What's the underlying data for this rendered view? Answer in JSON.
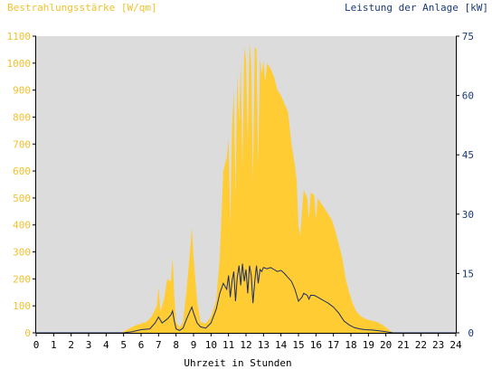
{
  "chart_data": {
    "type": "area",
    "title_left": "Bestrahlungsstärke [W/qm]",
    "title_right": "Leistung der Anlage [kW]",
    "xlabel": "Uhrzeit in Stunden",
    "xlim": [
      0,
      24
    ],
    "x_ticks": [
      "0",
      "1",
      "2",
      "3",
      "4",
      "5",
      "6",
      "7",
      "8",
      "9",
      "10",
      "11",
      "12",
      "13",
      "14",
      "15",
      "16",
      "17",
      "18",
      "19",
      "20",
      "21",
      "22",
      "23",
      "24"
    ],
    "y_left": {
      "range": [
        0,
        1100
      ],
      "ticks": [
        "0",
        "100",
        "200",
        "300",
        "400",
        "500",
        "600",
        "700",
        "800",
        "900",
        "1000",
        "1100"
      ]
    },
    "y_right": {
      "range": [
        0,
        75
      ],
      "ticks": [
        "0",
        "15",
        "30",
        "45",
        "60",
        "75"
      ]
    },
    "grid": false,
    "colors": {
      "background": "#ffffff",
      "plot_area": "#dcdcdc",
      "irradiance": "#ffcc33",
      "power": "#1a2e66",
      "left_axis_text": "#f2c02e",
      "right_axis_text": "#1a3a7a",
      "x_axis_text": "#000000"
    },
    "series": [
      {
        "name": "Bestrahlungsstärke",
        "axis": "left",
        "style": "area",
        "points": [
          [
            0,
            0
          ],
          [
            4.8,
            0
          ],
          [
            5,
            5
          ],
          [
            5.3,
            15
          ],
          [
            5.6,
            25
          ],
          [
            6,
            35
          ],
          [
            6.3,
            40
          ],
          [
            6.6,
            60
          ],
          [
            6.9,
            100
          ],
          [
            7.0,
            170
          ],
          [
            7.1,
            80
          ],
          [
            7.3,
            120
          ],
          [
            7.5,
            200
          ],
          [
            7.7,
            190
          ],
          [
            7.8,
            280
          ],
          [
            7.9,
            140
          ],
          [
            8.0,
            40
          ],
          [
            8.2,
            20
          ],
          [
            8.4,
            40
          ],
          [
            8.6,
            160
          ],
          [
            8.8,
            300
          ],
          [
            8.9,
            390
          ],
          [
            9.0,
            280
          ],
          [
            9.2,
            120
          ],
          [
            9.4,
            40
          ],
          [
            9.7,
            35
          ],
          [
            10.0,
            60
          ],
          [
            10.3,
            120
          ],
          [
            10.5,
            280
          ],
          [
            10.7,
            600
          ],
          [
            10.9,
            650
          ],
          [
            11.0,
            720
          ],
          [
            11.1,
            400
          ],
          [
            11.2,
            760
          ],
          [
            11.3,
            900
          ],
          [
            11.4,
            500
          ],
          [
            11.5,
            960
          ],
          [
            11.6,
            780
          ],
          [
            11.7,
            1000
          ],
          [
            11.8,
            600
          ],
          [
            11.9,
            1060
          ],
          [
            12.0,
            1010
          ],
          [
            12.1,
            700
          ],
          [
            12.2,
            1080
          ],
          [
            12.3,
            990
          ],
          [
            12.4,
            560
          ],
          [
            12.5,
            1060
          ],
          [
            12.6,
            1050
          ],
          [
            12.7,
            620
          ],
          [
            12.8,
            1020
          ],
          [
            12.9,
            960
          ],
          [
            13.0,
            1010
          ],
          [
            13.1,
            930
          ],
          [
            13.2,
            1000
          ],
          [
            13.4,
            980
          ],
          [
            13.6,
            950
          ],
          [
            13.8,
            900
          ],
          [
            14.0,
            880
          ],
          [
            14.2,
            850
          ],
          [
            14.4,
            820
          ],
          [
            14.6,
            700
          ],
          [
            14.8,
            620
          ],
          [
            14.9,
            560
          ],
          [
            15.0,
            400
          ],
          [
            15.1,
            360
          ],
          [
            15.2,
            450
          ],
          [
            15.3,
            530
          ],
          [
            15.5,
            500
          ],
          [
            15.6,
            420
          ],
          [
            15.7,
            520
          ],
          [
            15.9,
            510
          ],
          [
            16.0,
            420
          ],
          [
            16.1,
            500
          ],
          [
            16.3,
            480
          ],
          [
            16.5,
            460
          ],
          [
            16.7,
            440
          ],
          [
            16.9,
            420
          ],
          [
            17.1,
            380
          ],
          [
            17.3,
            330
          ],
          [
            17.5,
            280
          ],
          [
            17.7,
            200
          ],
          [
            17.9,
            150
          ],
          [
            18.1,
            110
          ],
          [
            18.3,
            80
          ],
          [
            18.6,
            60
          ],
          [
            18.9,
            50
          ],
          [
            19.2,
            45
          ],
          [
            19.5,
            40
          ],
          [
            19.8,
            30
          ],
          [
            20.0,
            20
          ],
          [
            20.3,
            5
          ],
          [
            20.5,
            0
          ],
          [
            24,
            0
          ]
        ]
      },
      {
        "name": "Leistung der Anlage",
        "axis": "right",
        "style": "line",
        "points": [
          [
            0,
            0
          ],
          [
            5.0,
            0
          ],
          [
            5.5,
            0.3
          ],
          [
            6.0,
            0.8
          ],
          [
            6.5,
            1.0
          ],
          [
            6.8,
            2.5
          ],
          [
            7.0,
            4.0
          ],
          [
            7.2,
            2.5
          ],
          [
            7.5,
            3.5
          ],
          [
            7.7,
            4.5
          ],
          [
            7.8,
            5.5
          ],
          [
            7.9,
            3.0
          ],
          [
            8.0,
            1.0
          ],
          [
            8.2,
            0.6
          ],
          [
            8.4,
            1.2
          ],
          [
            8.6,
            3.5
          ],
          [
            8.8,
            5.5
          ],
          [
            8.9,
            6.5
          ],
          [
            9.0,
            5.0
          ],
          [
            9.2,
            2.5
          ],
          [
            9.4,
            1.5
          ],
          [
            9.7,
            1.2
          ],
          [
            10.0,
            2.5
          ],
          [
            10.3,
            6.0
          ],
          [
            10.5,
            10.0
          ],
          [
            10.7,
            12.5
          ],
          [
            10.9,
            11.0
          ],
          [
            11.0,
            14.5
          ],
          [
            11.1,
            9.0
          ],
          [
            11.2,
            13.0
          ],
          [
            11.3,
            15.5
          ],
          [
            11.4,
            8.0
          ],
          [
            11.5,
            14.0
          ],
          [
            11.6,
            17.0
          ],
          [
            11.7,
            12.0
          ],
          [
            11.8,
            17.5
          ],
          [
            11.9,
            13.0
          ],
          [
            12.0,
            16.0
          ],
          [
            12.1,
            10.0
          ],
          [
            12.2,
            17.0
          ],
          [
            12.3,
            14.5
          ],
          [
            12.4,
            7.5
          ],
          [
            12.5,
            13.0
          ],
          [
            12.6,
            17.0
          ],
          [
            12.7,
            12.5
          ],
          [
            12.8,
            16.0
          ],
          [
            12.9,
            15.5
          ],
          [
            13.0,
            16.5
          ],
          [
            13.2,
            16.2
          ],
          [
            13.4,
            16.5
          ],
          [
            13.6,
            16.0
          ],
          [
            13.8,
            15.5
          ],
          [
            14.0,
            15.8
          ],
          [
            14.2,
            15.0
          ],
          [
            14.4,
            14.0
          ],
          [
            14.6,
            13.0
          ],
          [
            14.8,
            11.0
          ],
          [
            15.0,
            8.0
          ],
          [
            15.2,
            9.0
          ],
          [
            15.3,
            10.0
          ],
          [
            15.5,
            9.5
          ],
          [
            15.6,
            8.5
          ],
          [
            15.7,
            9.5
          ],
          [
            15.9,
            9.5
          ],
          [
            16.1,
            9.0
          ],
          [
            16.3,
            8.5
          ],
          [
            16.5,
            8.0
          ],
          [
            16.7,
            7.5
          ],
          [
            17.0,
            6.5
          ],
          [
            17.3,
            5.0
          ],
          [
            17.6,
            3.0
          ],
          [
            17.9,
            2.0
          ],
          [
            18.2,
            1.3
          ],
          [
            18.5,
            1.0
          ],
          [
            18.8,
            0.8
          ],
          [
            19.2,
            0.7
          ],
          [
            19.6,
            0.5
          ],
          [
            20.0,
            0.3
          ],
          [
            20.4,
            0
          ],
          [
            24,
            0
          ]
        ]
      }
    ]
  }
}
